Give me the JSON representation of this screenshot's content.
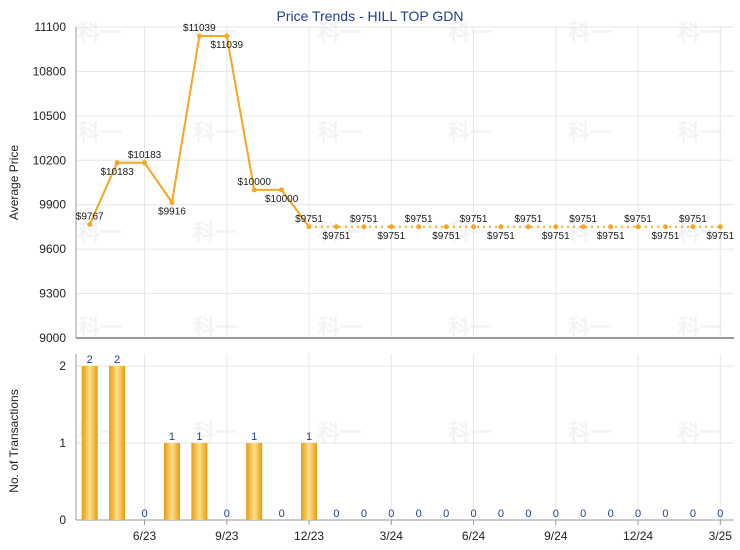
{
  "title": "Price Trends - HILL TOP GDN",
  "watermark": "科一",
  "colors": {
    "line": "#f5a623",
    "bar": "#f0a818",
    "bar_highlight": "#ffe08a",
    "grid": "#e6e6e6",
    "axis": "#999999",
    "title": "#1f3f8f",
    "bar_label": "#1f3f8f"
  },
  "chart_data": [
    {
      "type": "line",
      "title": "Price Trends - HILL TOP GDN",
      "ylabel": "Average Price",
      "ylim": [
        9000,
        11100
      ],
      "yticks": [
        9000,
        9300,
        9600,
        9900,
        10200,
        10500,
        10800,
        11100
      ],
      "grid": true,
      "x": [
        0,
        1,
        2,
        3,
        4,
        5,
        6,
        7,
        8,
        9,
        10,
        11,
        12,
        13,
        14,
        15,
        16,
        17,
        18,
        19,
        20,
        21,
        22,
        23
      ],
      "values": [
        9767,
        10183,
        10183,
        9916,
        11039,
        11039,
        10000,
        10000,
        9751,
        9751,
        9751,
        9751,
        9751,
        9751,
        9751,
        9751,
        9751,
        9751,
        9751,
        9751,
        9751,
        9751,
        9751,
        9751
      ],
      "labels": [
        "$9767",
        "$10183",
        "$10183",
        "$9916",
        "$11039",
        "$11039",
        "$10000",
        "$10000",
        "$9751",
        "$9751",
        "$9751",
        "$9751",
        "$9751",
        "$9751",
        "$9751",
        "$9751",
        "$9751",
        "$9751",
        "$9751",
        "$9751",
        "$9751",
        "$9751",
        "$9751",
        "$9751"
      ]
    },
    {
      "type": "bar",
      "ylabel": "No. of Transactions",
      "ylim": [
        0,
        2
      ],
      "yticks": [
        0,
        1,
        2
      ],
      "grid": true,
      "x": [
        0,
        1,
        2,
        3,
        4,
        5,
        6,
        7,
        8,
        9,
        10,
        11,
        12,
        13,
        14,
        15,
        16,
        17,
        18,
        19,
        20,
        21,
        22,
        23
      ],
      "values": [
        2,
        2,
        0,
        1,
        1,
        0,
        1,
        0,
        1,
        0,
        0,
        0,
        0,
        0,
        0,
        0,
        0,
        0,
        0,
        0,
        0,
        0,
        0,
        0
      ],
      "xtick_labels": [
        {
          "x": 2.5,
          "label": "6/23"
        },
        {
          "x": 5.5,
          "label": "9/23"
        },
        {
          "x": 8.5,
          "label": "12/23"
        },
        {
          "x": 11.5,
          "label": "3/24"
        },
        {
          "x": 14.5,
          "label": "6/24"
        },
        {
          "x": 17.5,
          "label": "9/24"
        },
        {
          "x": 20.5,
          "label": "12/24"
        },
        {
          "x": 23.5,
          "label": "3/25"
        }
      ]
    }
  ]
}
